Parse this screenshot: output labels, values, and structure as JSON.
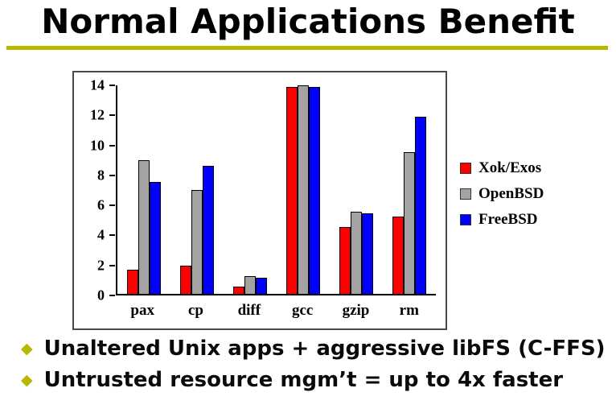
{
  "slide": {
    "title": "Normal Applications Benefit",
    "accent_color": "#b8b800",
    "bullet_glyph": "◆",
    "bullets": [
      "Unaltered Unix apps + aggressive libFS (C-FFS)",
      "Untrusted resource mgm’t = up to 4x faster"
    ]
  },
  "chart_data": {
    "type": "bar",
    "title": "",
    "xlabel": "",
    "ylabel": "",
    "categories": [
      "pax",
      "cp",
      "diff",
      "gcc",
      "gzip",
      "rm"
    ],
    "series": [
      {
        "name": "Xok/Exos",
        "color": "#ff0000",
        "values": [
          1.6,
          1.9,
          0.5,
          13.9,
          4.5,
          5.2
        ]
      },
      {
        "name": "OpenBSD",
        "color": "#a3a3a3",
        "values": [
          9.0,
          7.0,
          1.2,
          14.0,
          5.5,
          9.5
        ]
      },
      {
        "name": "FreeBSD",
        "color": "#0000ff",
        "values": [
          7.5,
          8.6,
          1.1,
          13.9,
          5.4,
          11.9
        ]
      }
    ],
    "ylim": [
      0,
      14
    ],
    "yticks": [
      0,
      2,
      4,
      6,
      8,
      10,
      12,
      14
    ],
    "grid": false,
    "legend_position": "right"
  }
}
